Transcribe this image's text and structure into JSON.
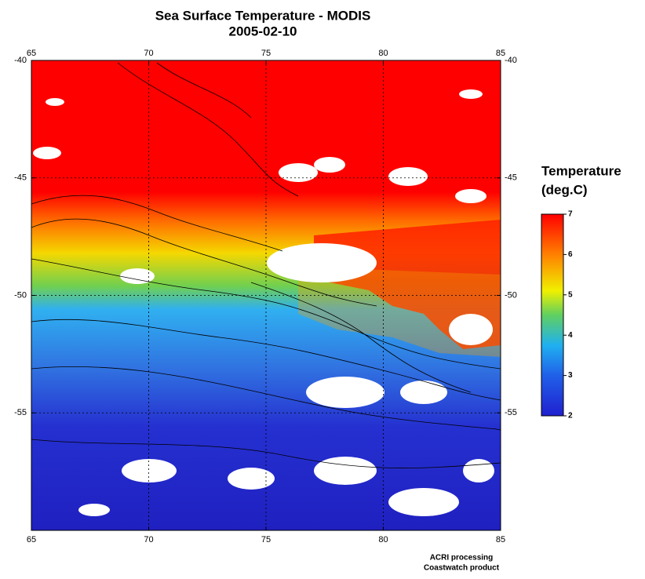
{
  "title": "Sea Surface Temperature - MODIS",
  "subtitle": "2005-02-10",
  "map": {
    "xlim": [
      65,
      85
    ],
    "ylim": [
      -40,
      -60
    ],
    "xticks": [
      65,
      70,
      75,
      80,
      85
    ],
    "yticks": [
      -40,
      -45,
      -50,
      -55
    ],
    "grid": true
  },
  "colorbar": {
    "title": "Temperature",
    "units": "(deg.C)",
    "range": [
      2,
      7
    ],
    "ticks": [
      2,
      3,
      4,
      5,
      6,
      7
    ]
  },
  "credits": [
    "ACRI processing",
    "Coastwatch product"
  ]
}
